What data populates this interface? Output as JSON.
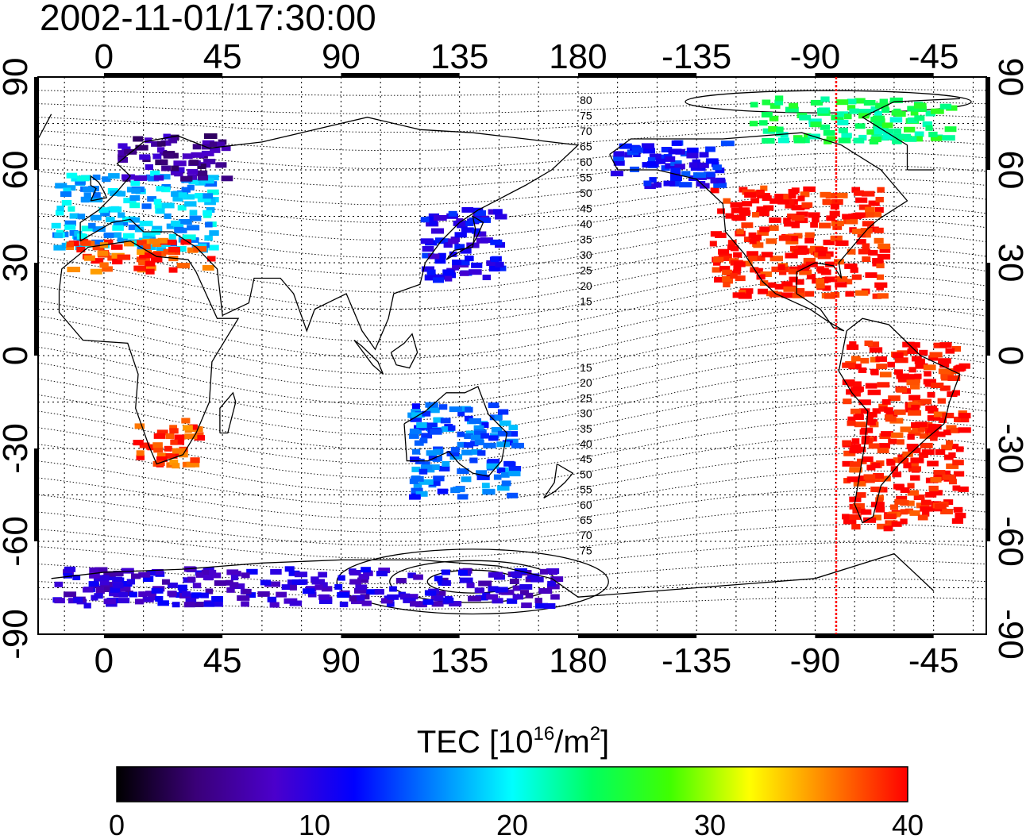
{
  "title": "2002-11-01/17:30:00",
  "map": {
    "type": "map",
    "x_ticks": [
      {
        "lon": 0,
        "label": "0"
      },
      {
        "lon": 45,
        "label": "45"
      },
      {
        "lon": 90,
        "label": "90"
      },
      {
        "lon": 135,
        "label": "135"
      },
      {
        "lon": 180,
        "label": "180"
      },
      {
        "lon": 225,
        "label": "-135"
      },
      {
        "lon": 270,
        "label": "-90"
      },
      {
        "lon": 315,
        "label": "-45"
      }
    ],
    "y_ticks": [
      {
        "lat": 90,
        "label": "90"
      },
      {
        "lat": 60,
        "label": "60"
      },
      {
        "lat": 30,
        "label": "30"
      },
      {
        "lat": 0,
        "label": "0"
      },
      {
        "lat": -30,
        "label": "-30"
      },
      {
        "lat": -60,
        "label": "-60"
      },
      {
        "lat": -90,
        "label": "-90"
      }
    ],
    "lon_range": [
      -25,
      335
    ],
    "lat_range": [
      -90,
      90
    ],
    "grid": true,
    "red_line_lon": 278,
    "contour_labels_north": [
      "80",
      "75",
      "70",
      "65",
      "60",
      "55",
      "50",
      "45",
      "40",
      "35",
      "30",
      "25",
      "20",
      "15"
    ],
    "contour_labels_south": [
      "15",
      "20",
      "25",
      "30",
      "35",
      "40",
      "45",
      "50",
      "55",
      "60",
      "65",
      "70",
      "75"
    ]
  },
  "colorbar": {
    "label_prefix": "TEC  [10",
    "label_exp1": "16",
    "label_mid": "/m",
    "label_exp2": "2",
    "label_suffix": "]",
    "ticks": [
      "0",
      "10",
      "20",
      "30",
      "40"
    ],
    "range": [
      0,
      40
    ],
    "colors": [
      "#000000",
      "#3a0078",
      "#4b00cc",
      "#0000ff",
      "#0080ff",
      "#00ffff",
      "#00ff60",
      "#40ff00",
      "#ffff00",
      "#ff8000",
      "#ff0000"
    ]
  },
  "tec_regions": [
    {
      "region": "north-america",
      "lon": [
        230,
        295
      ],
      "lat": [
        20,
        55
      ],
      "tec": 40
    },
    {
      "region": "europe",
      "lon": [
        -20,
        40
      ],
      "lat": [
        35,
        60
      ],
      "tec": 18
    },
    {
      "region": "scandinavia",
      "lon": [
        5,
        45
      ],
      "lat": [
        58,
        72
      ],
      "tec": 6
    },
    {
      "region": "mediterranean",
      "lon": [
        -15,
        40
      ],
      "lat": [
        28,
        38
      ],
      "tec": 38
    },
    {
      "region": "east-asia",
      "lon": [
        120,
        150
      ],
      "lat": [
        25,
        48
      ],
      "tec": 11
    },
    {
      "region": "alaska",
      "lon": [
        192,
        235
      ],
      "lat": [
        55,
        70
      ],
      "tec": 12
    },
    {
      "region": "australia",
      "lon": [
        115,
        155
      ],
      "lat": [
        -45,
        -15
      ],
      "tec": 15
    },
    {
      "region": "south-america",
      "lon": [
        280,
        325
      ],
      "lat": [
        -55,
        5
      ],
      "tec": 40
    },
    {
      "region": "africa-south",
      "lon": [
        10,
        35
      ],
      "lat": [
        -35,
        -20
      ],
      "tec": 38
    },
    {
      "region": "antarctica",
      "lon": [
        -20,
        170
      ],
      "lat": [
        -80,
        -68
      ],
      "tec": 9
    },
    {
      "region": "arctic",
      "lon": [
        245,
        320
      ],
      "lat": [
        70,
        84
      ],
      "tec": 24
    }
  ]
}
